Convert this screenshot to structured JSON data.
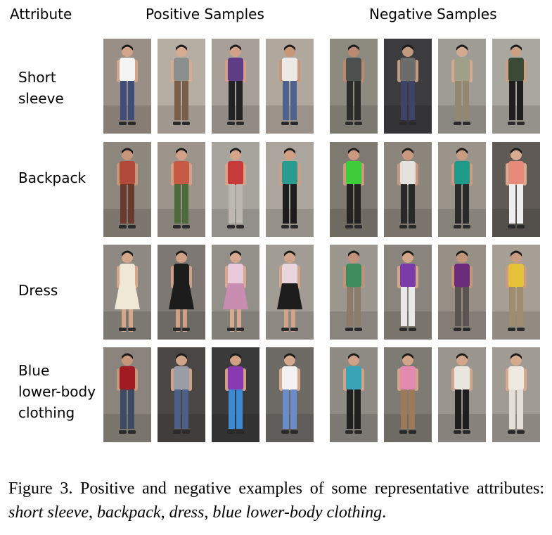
{
  "headers": {
    "attribute": "Attribute",
    "positive": "Positive Samples",
    "negative": "Negative Samples"
  },
  "rows": [
    {
      "label": "Short\nsleeve",
      "positive": [
        {
          "bg": "#9a8f86",
          "top": "#f4f4f4",
          "bottom": "#3f4d7a",
          "skin": "#d2a48a"
        },
        {
          "bg": "#b7aea3",
          "top": "#8b8f8e",
          "bottom": "#7b5e4a",
          "skin": "#d6ab8f"
        },
        {
          "bg": "#a79f98",
          "top": "#5e3c86",
          "bottom": "#222222",
          "skin": "#d0a188"
        },
        {
          "bg": "#b2a79d",
          "top": "#ece9e6",
          "bottom": "#4d628e",
          "skin": "#c9987a"
        }
      ],
      "negative": [
        {
          "bg": "#8d8a80",
          "top": "#4b4f4d",
          "bottom": "#2b2b2b",
          "skin": "#b98a71"
        },
        {
          "bg": "#3c3c3e",
          "top": "#6c6c6c",
          "bottom": "#3d4467",
          "skin": "#c29a80"
        },
        {
          "bg": "#9f9b95",
          "top": "#9ea08a",
          "bottom": "#93876f",
          "skin": "#d3aa8f"
        },
        {
          "bg": "#a8a8a0",
          "top": "#3a4a37",
          "bottom": "#1e1e1e",
          "skin": "#c9a086"
        }
      ]
    },
    {
      "label": "Backpack",
      "positive": [
        {
          "bg": "#8e877e",
          "top": "#b24a3a",
          "bottom": "#6a3a2f",
          "skin": "#c7977c"
        },
        {
          "bg": "#9d948b",
          "top": "#c65a44",
          "bottom": "#4d6a3b",
          "skin": "#d0a188"
        },
        {
          "bg": "#a7a49e",
          "top": "#c63a3a",
          "bottom": "#bdb9b2",
          "skin": "#d2a58c"
        },
        {
          "bg": "#aba59d",
          "top": "#2b9a8f",
          "bottom": "#1c1c1c",
          "skin": "#cf9f84"
        }
      ],
      "negative": [
        {
          "bg": "#7f7a71",
          "top": "#3fcc3a",
          "bottom": "#222222",
          "skin": "#c99a80"
        },
        {
          "bg": "#8b857c",
          "top": "#e4e2dc",
          "bottom": "#282828",
          "skin": "#c8997f"
        },
        {
          "bg": "#9a948b",
          "top": "#1f9a88",
          "bottom": "#2a2a2a",
          "skin": "#c99b80"
        },
        {
          "bg": "#5f5a55",
          "top": "#e88a7a",
          "bottom": "#eeeeee",
          "skin": "#d6ab90"
        }
      ]
    },
    {
      "label": "Dress",
      "positive": [
        {
          "bg": "#8e8a83",
          "top": "#efe8d6",
          "bottom": "#efe8d6",
          "skin": "#d4a78c"
        },
        {
          "bg": "#7d7873",
          "top": "#1c1c1c",
          "bottom": "#1c1c1c",
          "skin": "#cfa086"
        },
        {
          "bg": "#939089",
          "top": "#e9c9dc",
          "bottom": "#c88db0",
          "skin": "#d6aa90"
        },
        {
          "bg": "#a19c94",
          "top": "#e8d6dc",
          "bottom": "#1d1d1d",
          "skin": "#d2a58a"
        }
      ],
      "negative": [
        {
          "bg": "#9c978f",
          "top": "#3e8c5e",
          "bottom": "#8a7b6a",
          "skin": "#c2937a"
        },
        {
          "bg": "#8a857c",
          "top": "#7a3ca8",
          "bottom": "#e9e9e9",
          "skin": "#d4a78b"
        },
        {
          "bg": "#978f86",
          "top": "#6a2b7a",
          "bottom": "#5a5550",
          "skin": "#c3967c"
        },
        {
          "bg": "#a59f95",
          "top": "#e5c13a",
          "bottom": "#a08c6e",
          "skin": "#c99b80"
        }
      ]
    },
    {
      "label": "Blue\nlower-body\nclothing",
      "positive": [
        {
          "bg": "#8a847c",
          "top": "#a01c22",
          "bottom": "#3d4a66",
          "skin": "#c7977c"
        },
        {
          "bg": "#4a4644",
          "top": "#9a9ca6",
          "bottom": "#4c5f86",
          "skin": "#d0a388"
        },
        {
          "bg": "#3a3a3a",
          "top": "#8a3ab0",
          "bottom": "#3a8ad6",
          "skin": "#d0a086"
        },
        {
          "bg": "#6d6a66",
          "top": "#f2f2f2",
          "bottom": "#6a8cc8",
          "skin": "#d4a88d"
        }
      ],
      "negative": [
        {
          "bg": "#8e8a84",
          "top": "#3aa4b6",
          "bottom": "#1f1f1f",
          "skin": "#d1a287"
        },
        {
          "bg": "#7e7a74",
          "top": "#e28ab0",
          "bottom": "#9c7a5a",
          "skin": "#d2a48a"
        },
        {
          "bg": "#9a958d",
          "top": "#e9e6e0",
          "bottom": "#1e1e1e",
          "skin": "#d3a68b"
        },
        {
          "bg": "#a09b93",
          "top": "#eeeae2",
          "bottom": "#e4e0d8",
          "skin": "#d6aa8f"
        }
      ]
    }
  ],
  "caption": {
    "prefix": "Figure 3. Positive and negative examples of some representative attributes: ",
    "item1": "short sleeve",
    "sep1": ", ",
    "item2": "backpack",
    "sep2": ", ",
    "item3": "dress",
    "sep3": ", ",
    "item4": "blue lower-body clothing",
    "suffix": "."
  }
}
